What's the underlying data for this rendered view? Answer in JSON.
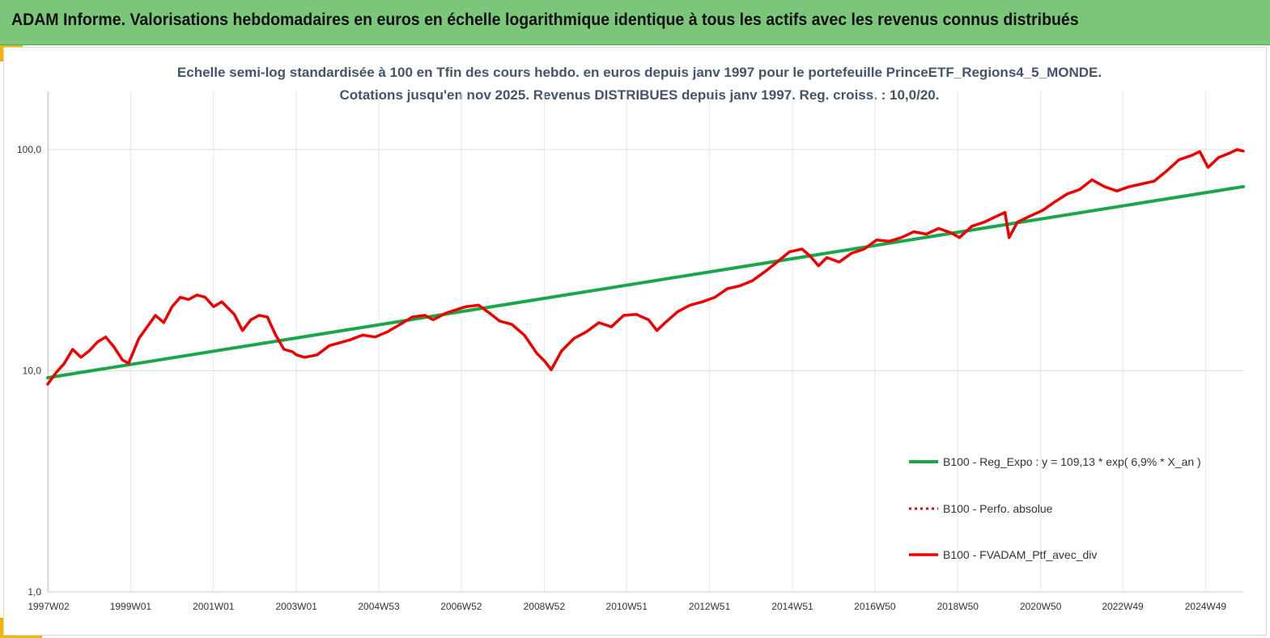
{
  "header": {
    "title": "ADAM Informe. Valorisations hebdomadaires en euros en échelle logarithmique identique à tous les actifs avec les revenus connus distribués"
  },
  "colors": {
    "header_bg": "#7bc67b",
    "corner_accent": "#f2b705",
    "regression": "#1aa64a",
    "portfolio": "#ee0000",
    "perfo_absolue": "#ee0000"
  },
  "chart_data": {
    "type": "line",
    "title_lines": [
      "Echelle semi-log standardisée  à 100 en Tfin des cours hebdo.  en euros depuis janv 1997 pour le portefeuille PrinceETF_Regions4_5_MONDE.",
      "Cotations jusqu'en nov 2025. Revenus DISTRIBUES depuis janv 1997. Reg. croiss. : 10,0/20."
    ],
    "y_scale": "log",
    "ylim": [
      1,
      200
    ],
    "y_ticks": [
      1,
      10,
      100
    ],
    "y_tick_labels": [
      "1,0",
      "10,0",
      "100,0"
    ],
    "x_range": [
      1997.0,
      2025.85
    ],
    "x_ticks": [
      {
        "x": 1997.02,
        "label": "1997W02"
      },
      {
        "x": 1999.0,
        "label": "1999W01"
      },
      {
        "x": 2001.0,
        "label": "2001W01"
      },
      {
        "x": 2003.0,
        "label": "2003W01"
      },
      {
        "x": 2004.99,
        "label": "2004W53"
      },
      {
        "x": 2006.98,
        "label": "2006W52"
      },
      {
        "x": 2008.98,
        "label": "2008W52"
      },
      {
        "x": 2010.97,
        "label": "2010W51"
      },
      {
        "x": 2012.97,
        "label": "2012W51"
      },
      {
        "x": 2014.97,
        "label": "2014W51"
      },
      {
        "x": 2016.96,
        "label": "2016W50"
      },
      {
        "x": 2018.96,
        "label": "2018W50"
      },
      {
        "x": 2020.96,
        "label": "2020W50"
      },
      {
        "x": 2022.94,
        "label": "2022W49"
      },
      {
        "x": 2024.94,
        "label": "2024W49"
      }
    ],
    "grid": true,
    "legend_position": "bottom-right",
    "series": [
      {
        "name": "B100 - Reg_Expo : y = 109,13 * exp( 6,9% *  X_an )",
        "style": "solid",
        "x": [
          1997.0,
          2025.85
        ],
        "y": [
          9.3,
          68
        ]
      },
      {
        "name": "B100 - Perfo. absolue",
        "style": "dotted",
        "x": [],
        "y": []
      },
      {
        "name": "B100 - FVADAM_Ptf_avec_div",
        "style": "solid",
        "x": [
          1997.0,
          1997.2,
          1997.4,
          1997.6,
          1997.8,
          1998.0,
          1998.2,
          1998.4,
          1998.6,
          1998.8,
          1998.95,
          1999.2,
          1999.4,
          1999.6,
          1999.8,
          2000.0,
          2000.2,
          2000.4,
          2000.6,
          2000.8,
          2001.0,
          2001.2,
          2001.5,
          2001.7,
          2001.9,
          2002.1,
          2002.3,
          2002.5,
          2002.7,
          2002.9,
          2003.0,
          2003.2,
          2003.5,
          2003.8,
          2004.0,
          2004.3,
          2004.6,
          2004.9,
          2005.2,
          2005.5,
          2005.8,
          2006.1,
          2006.3,
          2006.6,
          2006.9,
          2007.1,
          2007.4,
          2007.7,
          2007.9,
          2008.2,
          2008.5,
          2008.8,
          2009.0,
          2009.15,
          2009.4,
          2009.7,
          2010.0,
          2010.3,
          2010.6,
          2010.9,
          2011.2,
          2011.5,
          2011.7,
          2011.9,
          2012.2,
          2012.5,
          2012.8,
          2013.1,
          2013.4,
          2013.7,
          2014.0,
          2014.3,
          2014.6,
          2014.9,
          2015.2,
          2015.4,
          2015.6,
          2015.8,
          2016.1,
          2016.4,
          2016.7,
          2017.0,
          2017.3,
          2017.6,
          2017.9,
          2018.2,
          2018.5,
          2018.8,
          2019.0,
          2019.3,
          2019.6,
          2019.9,
          2020.1,
          2020.2,
          2020.4,
          2020.7,
          2021.0,
          2021.3,
          2021.6,
          2021.9,
          2022.2,
          2022.5,
          2022.8,
          2023.1,
          2023.4,
          2023.7,
          2024.0,
          2024.3,
          2024.6,
          2024.8,
          2025.0,
          2025.25,
          2025.5,
          2025.7,
          2025.85
        ],
        "y": [
          8.7,
          9.8,
          10.8,
          12.5,
          11.5,
          12.3,
          13.5,
          14.2,
          12.8,
          11.2,
          10.8,
          14.0,
          15.8,
          17.8,
          16.5,
          19.5,
          21.5,
          21.0,
          22.0,
          21.5,
          19.5,
          20.5,
          18.0,
          15.2,
          17.0,
          17.8,
          17.5,
          14.5,
          12.5,
          12.2,
          11.8,
          11.5,
          11.8,
          13.0,
          13.3,
          13.8,
          14.5,
          14.2,
          15.0,
          16.2,
          17.5,
          17.8,
          17.0,
          18.2,
          19.0,
          19.5,
          19.8,
          18.0,
          16.8,
          16.2,
          14.5,
          12.0,
          11.0,
          10.1,
          12.3,
          14.0,
          15.0,
          16.5,
          15.8,
          17.8,
          18.0,
          17.0,
          15.2,
          16.5,
          18.5,
          19.8,
          20.5,
          21.5,
          23.5,
          24.2,
          25.5,
          28.0,
          31.0,
          34.5,
          35.5,
          33.0,
          29.8,
          32.5,
          31.0,
          34.0,
          35.5,
          39.0,
          38.5,
          40.0,
          42.5,
          41.5,
          44.0,
          42.0,
          40.0,
          45.0,
          47.0,
          50.0,
          52.0,
          40.0,
          47.0,
          50.0,
          53.0,
          58.0,
          63.0,
          66.0,
          73.0,
          68.0,
          65.0,
          68.0,
          70.0,
          72.0,
          80.0,
          90.0,
          94.0,
          98.0,
          83.0,
          92.0,
          96.0,
          100.0,
          98.5
        ]
      }
    ]
  }
}
